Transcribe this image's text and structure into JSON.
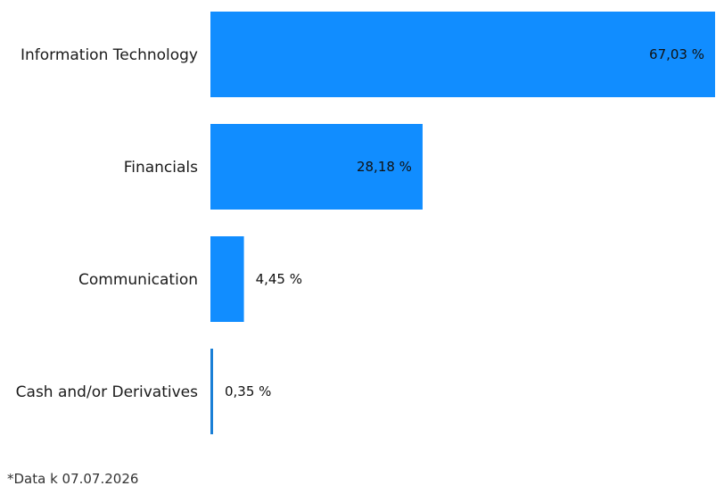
{
  "chart_data": {
    "type": "bar",
    "orientation": "horizontal",
    "categories": [
      "Information Technology",
      "Financials",
      "Communication",
      "Cash and/or Derivatives"
    ],
    "values": [
      67.03,
      28.18,
      4.45,
      0.35
    ],
    "value_labels": [
      "67,03 %",
      "28,18 %",
      "4,45 %",
      "0,35 %"
    ],
    "xlim": [
      0,
      67.03
    ],
    "grid": false,
    "legend": "none",
    "title": "",
    "xlabel": "",
    "ylabel": "",
    "bar_color": "#118dff",
    "thin_bar_color": "#1a7fd6"
  },
  "footnote": "*Data k 07.07.2026"
}
